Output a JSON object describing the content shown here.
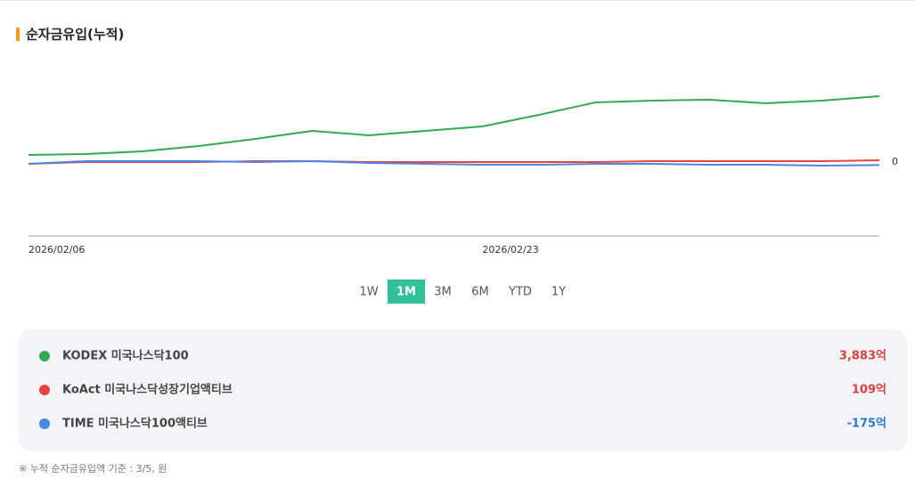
{
  "chart_data": {
    "type": "line",
    "title": "순자금유입(누적)",
    "categories": [
      "2026/02/06",
      null,
      null,
      null,
      null,
      null,
      null,
      null,
      "2026/02/23",
      null,
      null,
      null,
      null,
      null,
      null,
      null
    ],
    "series": [
      {
        "name": "KODEX 미국나스닥100",
        "color": "#34a853",
        "values": [
          420,
          472,
          630,
          945,
          1365,
          1838,
          1575,
          1838,
          2100,
          2783,
          3518,
          3623,
          3675,
          3465,
          3623,
          3883
        ],
        "value_labels": [
          null,
          null,
          null,
          null,
          null,
          null,
          null,
          null,
          null,
          null,
          null,
          null,
          null,
          null,
          null,
          "3,883억"
        ]
      },
      {
        "name": "KoAct 미국나스닥성장기업액티브",
        "color": "#e8453c",
        "values": [
          -105,
          0,
          0,
          0,
          52,
          52,
          0,
          0,
          0,
          0,
          0,
          52,
          52,
          52,
          52,
          109
        ],
        "value_labels": [
          null,
          null,
          null,
          null,
          null,
          null,
          null,
          null,
          null,
          null,
          null,
          null,
          null,
          null,
          null,
          "109억"
        ]
      },
      {
        "name": "TIME 미국나스닥100액티브",
        "color": "#4a86e8",
        "values": [
          -105,
          52,
          52,
          52,
          0,
          52,
          -52,
          -105,
          -158,
          -158,
          -105,
          -105,
          -158,
          -158,
          -210,
          -175
        ],
        "value_labels": [
          null,
          null,
          null,
          null,
          null,
          null,
          null,
          null,
          null,
          null,
          null,
          null,
          null,
          null,
          null,
          "-175억"
        ]
      }
    ],
    "ylim": [
      -4350,
      6400
    ],
    "yticks": [
      0
    ]
  },
  "range_buttons": {
    "labels": [
      "1W",
      "1M",
      "3M",
      "6M",
      "YTD",
      "1Y"
    ],
    "selected": 1
  },
  "footnote": "※ 누적 순자금유입액 기준 : 3/5, 원"
}
